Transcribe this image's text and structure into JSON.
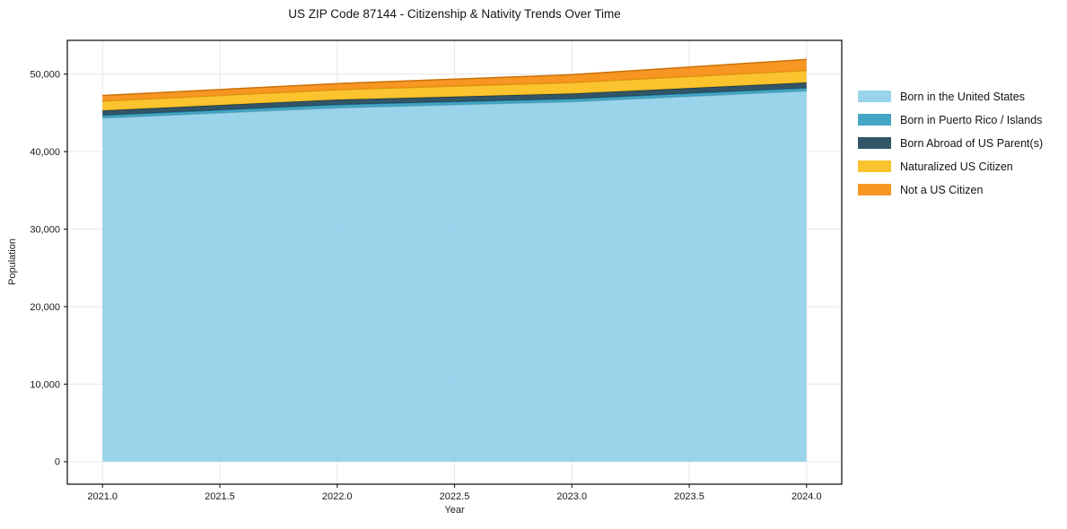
{
  "title": "US ZIP Code 87144 - Citizenship & Nativity Trends Over Time",
  "chart_data": {
    "type": "area",
    "stacked": true,
    "title": "US ZIP Code 87144 - Citizenship & Nativity Trends Over Time",
    "xlabel": "Year",
    "ylabel": "Population",
    "x": [
      2021,
      2022,
      2023,
      2024
    ],
    "series": [
      {
        "name": "Born in the United States",
        "color": "#8ecfe9",
        "values": [
          44330,
          45650,
          46430,
          47830
        ]
      },
      {
        "name": "Born in Puerto Rico / Islands",
        "color": "#309cbe",
        "values": [
          350,
          400,
          380,
          380
        ]
      },
      {
        "name": "Born Abroad of US Parent(s)",
        "color": "#1c4357",
        "values": [
          620,
          650,
          670,
          700
        ]
      },
      {
        "name": "Naturalized US Citizen",
        "color": "#fbbc17",
        "values": [
          1210,
          1280,
          1430,
          1550
        ]
      },
      {
        "name": "Not a US Citizen",
        "color": "#f68b0b",
        "values": [
          730,
          790,
          1010,
          1430
        ]
      }
    ],
    "x_ticks": [
      2021.0,
      2021.5,
      2022.0,
      2022.5,
      2023.0,
      2023.5,
      2024.0
    ],
    "x_tick_labels": [
      "2021.0",
      "2021.5",
      "2022.0",
      "2022.5",
      "2023.0",
      "2023.5",
      "2024.0"
    ],
    "y_ticks": [
      0,
      10000,
      20000,
      30000,
      40000,
      50000
    ],
    "y_tick_labels": [
      "0",
      "10,000",
      "20,000",
      "30,000",
      "40,000",
      "50,000"
    ],
    "xlim": [
      2020.85,
      2024.15
    ],
    "ylim": [
      -2900,
      54350
    ],
    "grid": true,
    "legend_position": "right-outside",
    "grid_color": "#eaeaef",
    "axis_color": "#1a1a1a"
  }
}
